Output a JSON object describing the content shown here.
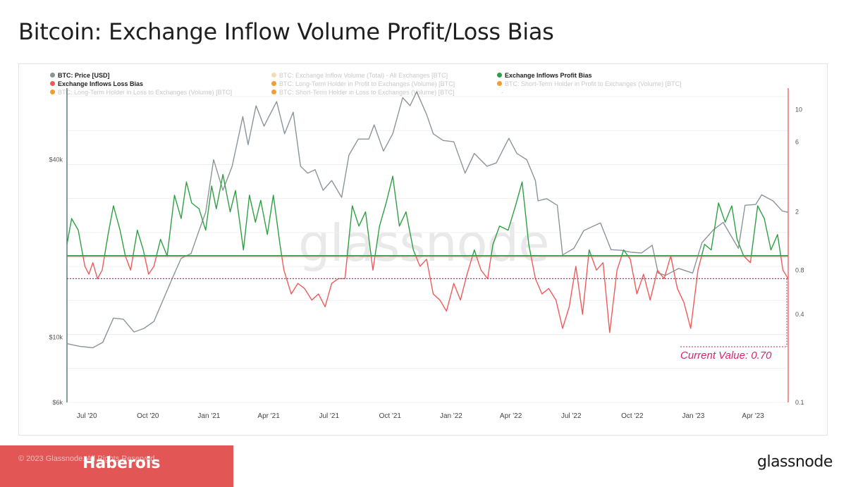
{
  "page": {
    "title": "Bitcoin: Exchange Inflow Volume Profit/Loss Bias",
    "footer_copyright": "© 2023 Glassnode. All Rights Reserved.",
    "footer_author": "Haberois",
    "footer_logo": "glassnode",
    "watermark": "glassnode"
  },
  "legend": [
    {
      "label": "BTC: Price [USD]",
      "color": "#8a959b",
      "active": true
    },
    {
      "label": "BTC: Exchange Inflow Volume (Total) - All Exchanges [BTC]",
      "color": "#f5ddb0",
      "active": false
    },
    {
      "label": "Exchange Inflows Profit Bias",
      "color": "#2ea043",
      "active": true
    },
    {
      "label": "Exchange Inflows Loss Bias",
      "color": "#ef5b5b",
      "active": true
    },
    {
      "label": "BTC: Long-Term Holder in Profit to Exchanges (Volume) [BTC]",
      "color": "#f39c32",
      "active": false
    },
    {
      "label": "BTC: Short-Term Holder in Profit to Exchanges (Volume) [BTC]",
      "color": "#f39c32",
      "active": false
    },
    {
      "label": "BTC: Long-Term Holder in Loss to Exchanges (Volume) [BTC]",
      "color": "#f39c32",
      "active": false
    },
    {
      "label": "BTC: Short-Term Holder in Loss to Exchanges (Volume) [BTC]",
      "color": "#f39c32",
      "active": false
    },
    {
      "label": "-",
      "color": "#ffffff",
      "active": false
    }
  ],
  "chart_data": {
    "type": "line",
    "x_ticks": [
      "Jul '20",
      "Oct '20",
      "Jan '21",
      "Apr '21",
      "Jul '21",
      "Oct '21",
      "Jan '22",
      "Apr '22",
      "Jul '22",
      "Oct '22",
      "Jan '23",
      "Apr '23"
    ],
    "x_range": [
      "2020-06-01",
      "2023-05-24"
    ],
    "y_left": {
      "scale": "log",
      "range": [
        6000,
        70000
      ],
      "ticks": [
        "$6k",
        "$10k",
        "$40k"
      ],
      "tick_values": [
        6000,
        10000,
        40000
      ]
    },
    "y_right": {
      "scale": "log",
      "range": [
        0.1,
        14
      ],
      "ticks": [
        "0.1",
        "0.4",
        "0.8",
        "2",
        "6",
        "10"
      ],
      "tick_values": [
        0.1,
        0.4,
        0.8,
        2,
        6,
        10
      ]
    },
    "baseline": 1.0,
    "current_value_level": 0.7,
    "annotation": "Current Value: 0.70",
    "colors": {
      "price": "#8a959b",
      "profit": "#2ea043",
      "loss": "#ef5b5b",
      "annotation": "#d6246e"
    },
    "price_series": {
      "name": "BTC: Price [USD]",
      "x": [
        "2020-06-01",
        "2020-06-20",
        "2020-07-10",
        "2020-07-25",
        "2020-08-10",
        "2020-08-25",
        "2020-09-10",
        "2020-09-25",
        "2020-10-10",
        "2020-10-21",
        "2020-11-05",
        "2020-11-20",
        "2020-12-05",
        "2020-12-17",
        "2020-12-27",
        "2021-01-08",
        "2021-01-22",
        "2021-02-05",
        "2021-02-21",
        "2021-03-01",
        "2021-03-13",
        "2021-03-25",
        "2021-04-13",
        "2021-04-25",
        "2021-05-08",
        "2021-05-19",
        "2021-05-30",
        "2021-06-10",
        "2021-06-22",
        "2021-07-05",
        "2021-07-20",
        "2021-07-31",
        "2021-08-14",
        "2021-08-30",
        "2021-09-07",
        "2021-09-21",
        "2021-10-05",
        "2021-10-20",
        "2021-10-31",
        "2021-11-10",
        "2021-11-25",
        "2021-12-05",
        "2021-12-20",
        "2022-01-05",
        "2022-01-22",
        "2022-02-05",
        "2022-02-24",
        "2022-03-10",
        "2022-03-29",
        "2022-04-10",
        "2022-04-25",
        "2022-05-08",
        "2022-05-12",
        "2022-05-25",
        "2022-06-10",
        "2022-06-18",
        "2022-07-05",
        "2022-07-20",
        "2022-08-14",
        "2022-08-30",
        "2022-09-15",
        "2022-09-30",
        "2022-10-15",
        "2022-10-31",
        "2022-11-09",
        "2022-11-20",
        "2022-12-10",
        "2022-12-31",
        "2023-01-14",
        "2023-01-31",
        "2023-02-15",
        "2023-03-10",
        "2023-03-20",
        "2023-04-05",
        "2023-04-14",
        "2023-05-01",
        "2023-05-15",
        "2023-05-24"
      ],
      "y": [
        9500,
        9300,
        9200,
        9600,
        11600,
        11500,
        10400,
        10700,
        11300,
        12900,
        15500,
        18500,
        19200,
        23000,
        26500,
        40000,
        31500,
        38000,
        56000,
        45000,
        61000,
        52000,
        63000,
        49000,
        58000,
        38000,
        36000,
        37000,
        31500,
        34000,
        29800,
        41500,
        47000,
        47000,
        52500,
        42800,
        49000,
        65000,
        61000,
        68000,
        57000,
        49000,
        46500,
        46000,
        36000,
        42000,
        38000,
        39000,
        47300,
        42000,
        40000,
        34000,
        29000,
        29500,
        28000,
        19000,
        20000,
        23000,
        24400,
        19800,
        19700,
        19400,
        19300,
        20500,
        16500,
        16200,
        17100,
        16500,
        20900,
        23100,
        24500,
        20000,
        28000,
        28200,
        30400,
        29000,
        26800,
        26500
      ]
    },
    "bias_series": {
      "name": "Exchange Inflows Profit/Loss Bias",
      "x": [
        "2020-06-01",
        "2020-06-08",
        "2020-06-18",
        "2020-06-28",
        "2020-07-04",
        "2020-07-10",
        "2020-07-17",
        "2020-07-24",
        "2020-08-02",
        "2020-08-10",
        "2020-08-20",
        "2020-08-28",
        "2020-09-05",
        "2020-09-15",
        "2020-09-24",
        "2020-10-02",
        "2020-10-10",
        "2020-10-20",
        "2020-10-30",
        "2020-11-10",
        "2020-11-20",
        "2020-11-28",
        "2020-12-06",
        "2020-12-17",
        "2020-12-27",
        "2021-01-05",
        "2021-01-12",
        "2021-01-22",
        "2021-02-02",
        "2021-02-10",
        "2021-02-22",
        "2021-03-03",
        "2021-03-12",
        "2021-03-20",
        "2021-03-30",
        "2021-04-08",
        "2021-04-18",
        "2021-04-24",
        "2021-05-05",
        "2021-05-15",
        "2021-05-25",
        "2021-06-05",
        "2021-06-15",
        "2021-06-25",
        "2021-07-05",
        "2021-07-15",
        "2021-07-25",
        "2021-08-05",
        "2021-08-15",
        "2021-08-25",
        "2021-09-05",
        "2021-09-15",
        "2021-09-25",
        "2021-10-05",
        "2021-10-15",
        "2021-10-25",
        "2021-11-05",
        "2021-11-15",
        "2021-11-25",
        "2021-12-05",
        "2021-12-15",
        "2021-12-25",
        "2022-01-05",
        "2022-01-15",
        "2022-01-25",
        "2022-02-05",
        "2022-02-15",
        "2022-02-25",
        "2022-03-05",
        "2022-03-15",
        "2022-03-28",
        "2022-04-08",
        "2022-04-18",
        "2022-04-28",
        "2022-05-08",
        "2022-05-18",
        "2022-05-28",
        "2022-06-08",
        "2022-06-18",
        "2022-06-28",
        "2022-07-08",
        "2022-07-18",
        "2022-07-28",
        "2022-08-08",
        "2022-08-18",
        "2022-08-28",
        "2022-09-08",
        "2022-09-18",
        "2022-09-28",
        "2022-10-08",
        "2022-10-18",
        "2022-10-28",
        "2022-11-08",
        "2022-11-18",
        "2022-11-28",
        "2022-12-08",
        "2022-12-18",
        "2022-12-28",
        "2023-01-08",
        "2023-01-18",
        "2023-01-28",
        "2023-02-08",
        "2023-02-18",
        "2023-02-28",
        "2023-03-08",
        "2023-03-18",
        "2023-03-28",
        "2023-04-08",
        "2023-04-18",
        "2023-04-28",
        "2023-05-08",
        "2023-05-16",
        "2023-05-24"
      ],
      "y": [
        1.2,
        1.8,
        1.5,
        0.85,
        0.75,
        0.9,
        0.7,
        0.8,
        1.4,
        2.2,
        1.5,
        1.0,
        0.8,
        1.5,
        1.1,
        0.75,
        0.85,
        1.3,
        1.0,
        2.6,
        1.8,
        3.2,
        2.3,
        2.1,
        1.5,
        3.0,
        2.1,
        3.6,
        2.0,
        2.8,
        1.1,
        2.6,
        1.7,
        2.4,
        1.4,
        2.6,
        1.2,
        0.8,
        0.55,
        0.65,
        0.6,
        0.5,
        0.55,
        0.45,
        0.65,
        0.7,
        0.7,
        2.2,
        1.6,
        2.0,
        0.8,
        1.6,
        2.3,
        3.5,
        1.6,
        2.0,
        1.1,
        0.85,
        0.95,
        0.55,
        0.5,
        0.42,
        0.65,
        0.5,
        0.75,
        1.1,
        0.8,
        0.7,
        1.2,
        1.6,
        1.5,
        2.2,
        3.2,
        1.2,
        0.7,
        0.55,
        0.6,
        0.5,
        0.32,
        0.45,
        0.85,
        0.4,
        1.1,
        0.8,
        0.9,
        0.3,
        0.8,
        1.1,
        0.95,
        0.55,
        0.75,
        0.5,
        0.8,
        0.7,
        1.0,
        0.6,
        0.48,
        0.32,
        0.8,
        1.2,
        1.1,
        2.3,
        1.7,
        2.2,
        1.3,
        1.0,
        0.9,
        2.2,
        1.8,
        1.1,
        1.4,
        0.8,
        0.7
      ]
    }
  }
}
